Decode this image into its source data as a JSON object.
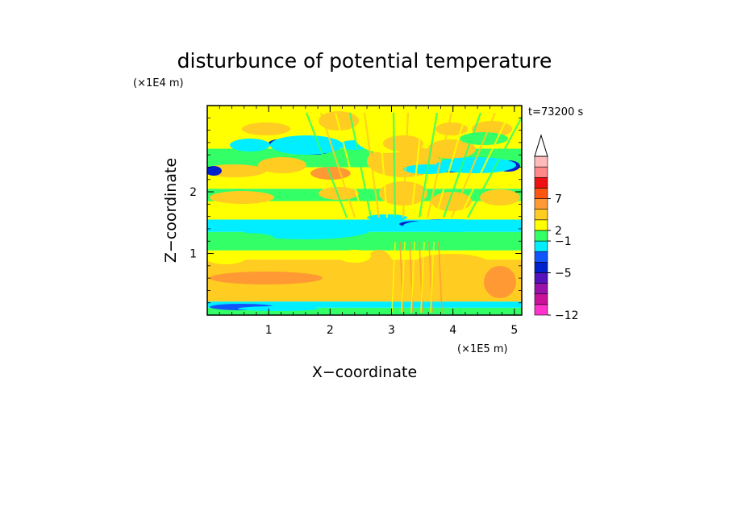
{
  "chart_data": {
    "type": "heatmap",
    "title": "disturbunce of potential temperature",
    "xlabel": "X−coordinate",
    "ylabel": "Z−coordinate",
    "x_unit": "(×1E5 m)",
    "y_unit": "(×1E4 m)",
    "time_label": "t=73200 s",
    "xlim": [
      0,
      5.12
    ],
    "ylim": [
      0,
      3.4
    ],
    "x_ticks": [
      {
        "value": 1,
        "label": "1"
      },
      {
        "value": 2,
        "label": "2"
      },
      {
        "value": 3,
        "label": "3"
      },
      {
        "value": 4,
        "label": "4"
      },
      {
        "value": 5,
        "label": "5"
      }
    ],
    "y_ticks": [
      {
        "value": 1,
        "label": "1"
      },
      {
        "value": 2,
        "label": "2"
      }
    ],
    "colorbar": {
      "colors": [
        "#ff33cc",
        "#cc1199",
        "#9911aa",
        "#5511bb",
        "#0022cc",
        "#1155ff",
        "#00eeff",
        "#33ff66",
        "#ffff00",
        "#ffcc22",
        "#ff9933",
        "#ff5511",
        "#ee1111",
        "#ff8888",
        "#ffbbbb"
      ],
      "labels": [
        {
          "value": "−12",
          "level": 0
        },
        {
          "value": "−5",
          "level": 4
        },
        {
          "value": "−1",
          "level": 7
        },
        {
          "value": "2",
          "level": 8
        },
        {
          "value": "7",
          "level": 11
        }
      ],
      "extend": "max"
    },
    "bands": [
      {
        "y0": 0.0,
        "y1": 0.12,
        "class": "green"
      },
      {
        "y0": 0.12,
        "y1": 0.22,
        "class": "cyan"
      },
      {
        "y0": 0.22,
        "y1": 0.9,
        "class": "orange"
      },
      {
        "y0": 0.9,
        "y1": 1.05,
        "class": "yellow"
      },
      {
        "y0": 1.05,
        "y1": 1.35,
        "class": "green"
      },
      {
        "y0": 1.35,
        "y1": 1.55,
        "class": "cyan"
      },
      {
        "y0": 1.55,
        "y1": 1.85,
        "class": "yellow"
      },
      {
        "y0": 1.85,
        "y1": 2.05,
        "class": "green"
      },
      {
        "y0": 2.05,
        "y1": 2.4,
        "class": "yellow"
      },
      {
        "y0": 2.4,
        "y1": 2.7,
        "class": "green"
      },
      {
        "y0": 2.7,
        "y1": 3.4,
        "class": "yellow"
      }
    ]
  }
}
